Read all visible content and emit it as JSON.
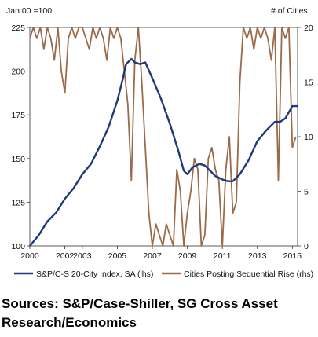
{
  "chart_data": {
    "type": "line",
    "left_axis_title": "Jan 00 =100",
    "right_axis_title": "# of Cities",
    "left_ylim": [
      100,
      225
    ],
    "left_ticks": [
      "100",
      "125",
      "150",
      "175",
      "200",
      "225"
    ],
    "right_ylim": [
      0,
      20
    ],
    "right_ticks": [
      "0",
      "5",
      "10",
      "15",
      "20"
    ],
    "xlim": [
      2000,
      2015.3
    ],
    "x_ticks": [
      "2000",
      "2002",
      "2003",
      "2005",
      "2007",
      "2009",
      "2011",
      "2013",
      "2015"
    ],
    "grid": false,
    "legend_position": "bottom",
    "series": [
      {
        "name": "S&P/C-S 20-City Index, SA (lhs)",
        "axis": "left",
        "color": "#1f3a7a",
        "x": [
          2000,
          2000.5,
          2001,
          2001.5,
          2002,
          2002.5,
          2003,
          2003.5,
          2004,
          2004.5,
          2005,
          2005.3,
          2005.5,
          2005.8,
          2006,
          2006.3,
          2006.6,
          2007,
          2007.5,
          2008,
          2008.5,
          2008.8,
          2009,
          2009.3,
          2009.7,
          2010,
          2010.3,
          2010.6,
          2011,
          2011.3,
          2011.6,
          2012,
          2012.5,
          2013,
          2013.5,
          2014,
          2014.3,
          2014.6,
          2015,
          2015.3
        ],
        "y": [
          100,
          106,
          114,
          119,
          127,
          133,
          141,
          147,
          157,
          168,
          183,
          195,
          204,
          207,
          205,
          204,
          205,
          196,
          184,
          170,
          154,
          143,
          141,
          145,
          147,
          146,
          143,
          140,
          138,
          137,
          137,
          141,
          149,
          160,
          166,
          171,
          171,
          173,
          180,
          180
        ]
      },
      {
        "name": "Cities Posting Sequential Rise (rhs)",
        "axis": "right",
        "color": "#9b6a4a",
        "x": [
          2000,
          2000.2,
          2000.4,
          2000.6,
          2000.8,
          2001,
          2001.2,
          2001.4,
          2001.6,
          2001.8,
          2002,
          2002.2,
          2002.4,
          2002.6,
          2002.8,
          2003,
          2003.2,
          2003.4,
          2003.6,
          2003.8,
          2004,
          2004.2,
          2004.4,
          2004.6,
          2004.8,
          2005,
          2005.2,
          2005.4,
          2005.6,
          2005.8,
          2006,
          2006.2,
          2006.4,
          2006.6,
          2006.8,
          2007,
          2007.2,
          2007.4,
          2007.6,
          2007.8,
          2008,
          2008.2,
          2008.4,
          2008.6,
          2008.8,
          2009,
          2009.2,
          2009.4,
          2009.6,
          2009.8,
          2010,
          2010.2,
          2010.4,
          2010.6,
          2010.8,
          2011,
          2011.2,
          2011.4,
          2011.6,
          2011.8,
          2012,
          2012.2,
          2012.4,
          2012.6,
          2012.8,
          2013,
          2013.2,
          2013.4,
          2013.6,
          2013.8,
          2014,
          2014.2,
          2014.4,
          2014.6,
          2014.8,
          2015,
          2015.2
        ],
        "y": [
          19,
          20,
          19,
          20,
          18,
          20,
          19,
          17,
          20,
          16,
          14,
          19,
          20,
          19,
          20,
          20,
          19,
          18,
          20,
          19,
          20,
          19,
          17,
          20,
          19,
          20,
          19,
          16,
          13,
          6,
          17,
          20,
          15,
          9,
          3,
          0,
          2,
          1,
          0,
          2,
          1,
          0,
          7,
          5,
          0,
          3,
          5,
          8,
          7,
          0,
          1,
          8,
          9,
          7,
          6,
          0,
          7,
          10,
          3,
          4,
          15,
          20,
          19,
          20,
          18,
          20,
          19,
          20,
          19,
          17,
          20,
          6,
          20,
          19,
          20,
          9,
          10
        ]
      }
    ]
  },
  "source_text": "Sources: S&P/Case-Shiller, SG Cross Asset Research/Economics"
}
